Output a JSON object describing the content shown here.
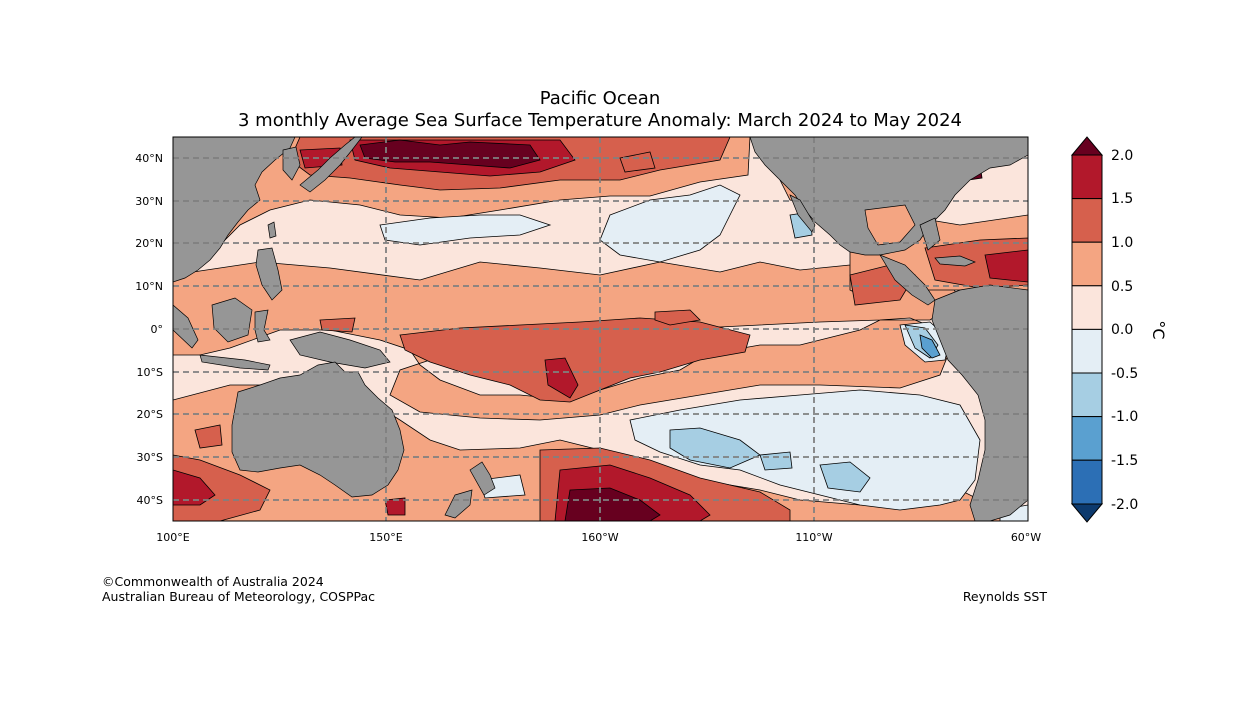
{
  "title": {
    "line1": "Pacific Ocean",
    "line2": "3 monthly Average Sea Surface Temperature Anomaly: March 2024 to May 2024"
  },
  "map": {
    "lat_labels": [
      "40°N",
      "30°N",
      "20°N",
      "10°N",
      "0°",
      "10°S",
      "20°S",
      "30°S",
      "40°S"
    ],
    "lon_labels": [
      "100°E",
      "150°E",
      "160°W",
      "110°W",
      "60°W"
    ],
    "land_color": "#969696",
    "gridline_color": "#808080"
  },
  "colorbar": {
    "unit": "°C",
    "tick_labels": [
      "2.0",
      "1.5",
      "1.0",
      "0.5",
      "0.0",
      "-0.5",
      "-1.0",
      "-1.5",
      "-2.0"
    ],
    "bands": [
      {
        "range": "> 2.0",
        "color": "#67001f"
      },
      {
        "range": "1.5 to 2.0",
        "color": "#b2182b"
      },
      {
        "range": "1.0 to 1.5",
        "color": "#d6604d"
      },
      {
        "range": "0.5 to 1.0",
        "color": "#f4a582"
      },
      {
        "range": "0.0 to 0.5",
        "color": "#fbe5dc"
      },
      {
        "range": "-0.5 to 0.0",
        "color": "#e4eef5"
      },
      {
        "range": "-1.0 to -0.5",
        "color": "#a6cee3"
      },
      {
        "range": "-1.5 to -1.0",
        "color": "#5aa0d0"
      },
      {
        "range": "-2.0 to -1.5",
        "color": "#2c6fb5"
      },
      {
        "range": "< -2.0",
        "color": "#0d3a6e"
      }
    ]
  },
  "credits": {
    "line1": "©Commonwealth of Australia 2024",
    "line2": "Australian Bureau of Meteorology, COSPPac",
    "source": "Reynolds SST"
  }
}
